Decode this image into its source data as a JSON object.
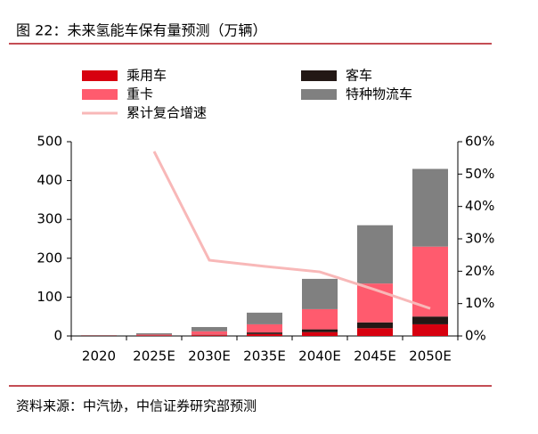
{
  "title": "图 22：未来氢能车保有量预测（万辆）",
  "source": "资料来源：中汽协，中信证券研究部预测",
  "chart_data": {
    "type": "bar",
    "categories": [
      "2020",
      "2025E",
      "2030E",
      "2035E",
      "2040E",
      "2045E",
      "2050E"
    ],
    "stacked": true,
    "series": [
      {
        "name": "乘用车",
        "color": "#d7000f",
        "values": [
          0.5,
          1,
          2,
          5,
          10,
          20,
          30
        ]
      },
      {
        "name": "客车",
        "color": "#231815",
        "values": [
          0.5,
          0.5,
          1,
          4,
          7,
          15,
          20
        ]
      },
      {
        "name": "重卡",
        "color": "#ff5b6e",
        "values": [
          0.5,
          2,
          9,
          21,
          52,
          100,
          180
        ]
      },
      {
        "name": "特种物流车",
        "color": "#808080",
        "values": [
          0.5,
          3.5,
          11,
          30,
          78,
          150,
          200
        ]
      },
      {
        "name": "累计复合增速",
        "color": "#f8b8b8",
        "type": "line",
        "axis": "y2",
        "values": [
          null,
          57,
          23.4,
          21.5,
          19.8,
          14.3,
          8.5
        ]
      }
    ],
    "ylim": [
      0,
      500
    ],
    "yticks": [
      0,
      100,
      200,
      300,
      400,
      500
    ],
    "y2lim": [
      0,
      60
    ],
    "y2ticks": [
      {
        "value": 0,
        "label": "0%"
      },
      {
        "value": 10,
        "label": "10%"
      },
      {
        "value": 20,
        "label": "20%"
      },
      {
        "value": 30,
        "label": "30%"
      },
      {
        "value": 40,
        "label": "40%"
      },
      {
        "value": 50,
        "label": "50%"
      },
      {
        "value": 60,
        "label": "60%"
      }
    ],
    "grid": false
  }
}
